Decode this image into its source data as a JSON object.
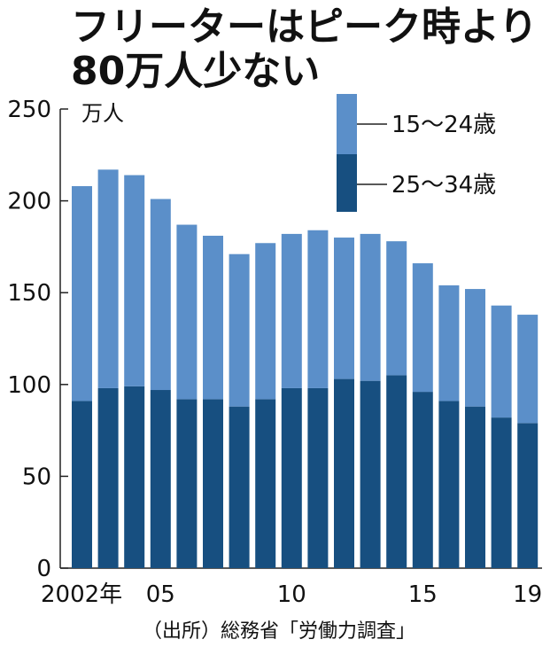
{
  "title_lines": [
    "フリーターはピーク時より",
    "80万人少ない"
  ],
  "source": "（出所）総務省「労働力調査」",
  "colors": {
    "light": "#5b8fc9",
    "dark": "#174f80",
    "axis": "#222222",
    "text": "#111111"
  },
  "chart_data": {
    "type": "bar",
    "stacked": true,
    "unit": "万人",
    "x": [
      2002,
      2003,
      2004,
      2005,
      2006,
      2007,
      2008,
      2009,
      2010,
      2011,
      2012,
      2013,
      2014,
      2015,
      2016,
      2017,
      2018,
      2019
    ],
    "x_tick_labels": [
      {
        "x": 2002,
        "label": "2002年"
      },
      {
        "x": 2005,
        "label": "05"
      },
      {
        "x": 2010,
        "label": "10"
      },
      {
        "x": 2015,
        "label": "15"
      },
      {
        "x": 2019,
        "label": "19"
      }
    ],
    "y_ticks": [
      0,
      50,
      100,
      150,
      200,
      250
    ],
    "ylim": [
      0,
      250
    ],
    "series": [
      {
        "name": "25～34歳",
        "color": "#174f80",
        "values": [
          91,
          98,
          99,
          97,
          92,
          92,
          88,
          92,
          98,
          98,
          103,
          102,
          105,
          96,
          91,
          88,
          82,
          79
        ]
      },
      {
        "name": "15～24歳",
        "color": "#5b8fc9",
        "values": [
          117,
          119,
          115,
          104,
          95,
          89,
          83,
          85,
          84,
          86,
          77,
          80,
          73,
          70,
          63,
          64,
          61,
          59
        ]
      }
    ],
    "legend_position": "top-right"
  }
}
